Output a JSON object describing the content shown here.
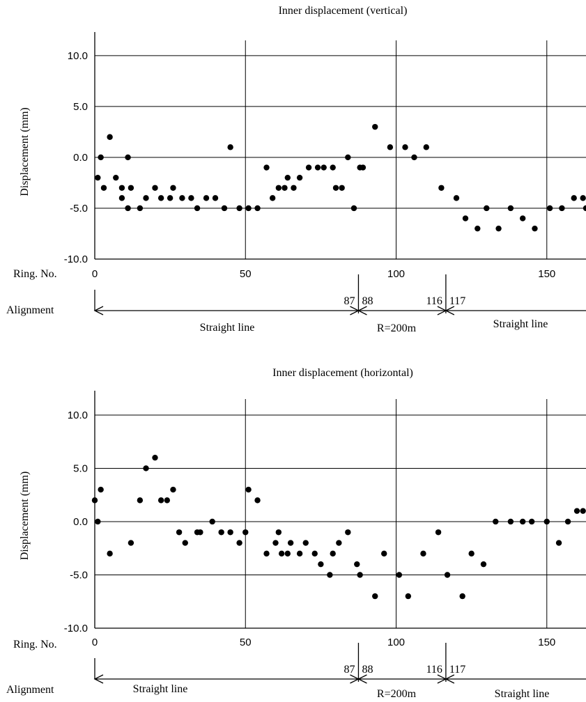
{
  "chart_data": [
    {
      "type": "scatter",
      "title": "Inner displacement (vertical)",
      "ylabel": "Displacement (mm)",
      "xlabel": "Ring. No.",
      "xlim": [
        0,
        163
      ],
      "ylim": [
        -10,
        11.5
      ],
      "x_ticks": [
        0,
        50,
        100,
        150
      ],
      "y_ticks": [
        10.0,
        5.0,
        0.0,
        -5.0,
        -10.0
      ],
      "y_tick_labels": [
        "10.0",
        "5.0",
        "0.0",
        "-5.0",
        "-10.0"
      ],
      "vertical_gridlines": [
        50,
        100,
        150
      ],
      "grid": true,
      "points": [
        [
          1,
          -2
        ],
        [
          2,
          0
        ],
        [
          3,
          -3
        ],
        [
          5,
          2
        ],
        [
          7,
          -2
        ],
        [
          9,
          -3
        ],
        [
          9,
          -4
        ],
        [
          11,
          0
        ],
        [
          11,
          -5
        ],
        [
          12,
          -3
        ],
        [
          15,
          -5
        ],
        [
          17,
          -4
        ],
        [
          20,
          -3
        ],
        [
          22,
          -4
        ],
        [
          25,
          -4
        ],
        [
          26,
          -3
        ],
        [
          29,
          -4
        ],
        [
          32,
          -4
        ],
        [
          34,
          -5
        ],
        [
          37,
          -4
        ],
        [
          40,
          -4
        ],
        [
          43,
          -5
        ],
        [
          45,
          1
        ],
        [
          48,
          -5
        ],
        [
          51,
          -5
        ],
        [
          54,
          -5
        ],
        [
          57,
          -1
        ],
        [
          59,
          -4
        ],
        [
          61,
          -3
        ],
        [
          63,
          -3
        ],
        [
          64,
          -2
        ],
        [
          66,
          -3
        ],
        [
          68,
          -2
        ],
        [
          71,
          -1
        ],
        [
          74,
          -1
        ],
        [
          76,
          -1
        ],
        [
          79,
          -1
        ],
        [
          80,
          -3
        ],
        [
          82,
          -3
        ],
        [
          84,
          0
        ],
        [
          86,
          -5
        ],
        [
          88,
          -1
        ],
        [
          89,
          -1
        ],
        [
          93,
          3
        ],
        [
          98,
          1
        ],
        [
          103,
          1
        ],
        [
          106,
          0
        ],
        [
          110,
          1
        ],
        [
          115,
          -3
        ],
        [
          120,
          -4
        ],
        [
          123,
          -6
        ],
        [
          127,
          -7
        ],
        [
          130,
          -5
        ],
        [
          134,
          -7
        ],
        [
          138,
          -5
        ],
        [
          142,
          -6
        ],
        [
          146,
          -7
        ],
        [
          151,
          -5
        ],
        [
          155,
          -5
        ],
        [
          159,
          -4
        ],
        [
          162,
          -4
        ],
        [
          163,
          -5
        ]
      ],
      "alignment": {
        "label": "Alignment",
        "boundaries": [
          {
            "ring_left": 87,
            "ring_right": 88,
            "label_left": "87",
            "label_right": "88"
          },
          {
            "ring_left": 116,
            "ring_right": 117,
            "label_left": "116",
            "label_right": "117"
          }
        ],
        "segments": [
          {
            "label": "Straight line",
            "from": 0,
            "to": 87
          },
          {
            "label": "R=200m",
            "from": 88,
            "to": 116
          },
          {
            "label": "Straight line",
            "from": 117,
            "to": 163
          }
        ]
      }
    },
    {
      "type": "scatter",
      "title": "Inner displacement (horizontal)",
      "ylabel": "Displacement (mm)",
      "xlabel": "Ring. No.",
      "xlim": [
        0,
        163
      ],
      "ylim": [
        -10,
        11.5
      ],
      "x_ticks": [
        0,
        50,
        100,
        150
      ],
      "y_ticks": [
        10.0,
        5.0,
        0.0,
        -5.0,
        -10.0
      ],
      "y_tick_labels": [
        "10.0",
        "5.0",
        "0.0",
        "-5.0",
        "-10.0"
      ],
      "vertical_gridlines": [
        50,
        100,
        150
      ],
      "grid": true,
      "points": [
        [
          0,
          2
        ],
        [
          1,
          0
        ],
        [
          2,
          3
        ],
        [
          5,
          -3
        ],
        [
          12,
          -2
        ],
        [
          15,
          2
        ],
        [
          17,
          5
        ],
        [
          20,
          6
        ],
        [
          22,
          2
        ],
        [
          24,
          2
        ],
        [
          26,
          3
        ],
        [
          28,
          -1
        ],
        [
          30,
          -2
        ],
        [
          34,
          -1
        ],
        [
          35,
          -1
        ],
        [
          39,
          0
        ],
        [
          42,
          -1
        ],
        [
          45,
          -1
        ],
        [
          48,
          -2
        ],
        [
          50,
          -1
        ],
        [
          51,
          3
        ],
        [
          54,
          2
        ],
        [
          57,
          -3
        ],
        [
          60,
          -2
        ],
        [
          61,
          -1
        ],
        [
          62,
          -3
        ],
        [
          64,
          -3
        ],
        [
          65,
          -2
        ],
        [
          68,
          -3
        ],
        [
          70,
          -2
        ],
        [
          73,
          -3
        ],
        [
          75,
          -4
        ],
        [
          78,
          -5
        ],
        [
          79,
          -3
        ],
        [
          81,
          -2
        ],
        [
          84,
          -1
        ],
        [
          87,
          -4
        ],
        [
          88,
          -5
        ],
        [
          93,
          -7
        ],
        [
          96,
          -3
        ],
        [
          101,
          -5
        ],
        [
          104,
          -7
        ],
        [
          109,
          -3
        ],
        [
          114,
          -1
        ],
        [
          117,
          -5
        ],
        [
          122,
          -7
        ],
        [
          125,
          -3
        ],
        [
          129,
          -4
        ],
        [
          133,
          0
        ],
        [
          138,
          0
        ],
        [
          142,
          0
        ],
        [
          145,
          0
        ],
        [
          150,
          0
        ],
        [
          154,
          -2
        ],
        [
          157,
          0
        ],
        [
          160,
          1
        ],
        [
          162,
          1
        ]
      ],
      "alignment": {
        "label": "Alignment",
        "boundaries": [
          {
            "ring_left": 87,
            "ring_right": 88,
            "label_left": "87",
            "label_right": "88"
          },
          {
            "ring_left": 116,
            "ring_right": 117,
            "label_left": "116",
            "label_right": "117"
          }
        ],
        "segments": [
          {
            "label": "Straight line",
            "from": 0,
            "to": 87
          },
          {
            "label": "R=200m",
            "from": 88,
            "to": 116
          },
          {
            "label": "Straight line",
            "from": 117,
            "to": 163
          }
        ]
      }
    }
  ]
}
